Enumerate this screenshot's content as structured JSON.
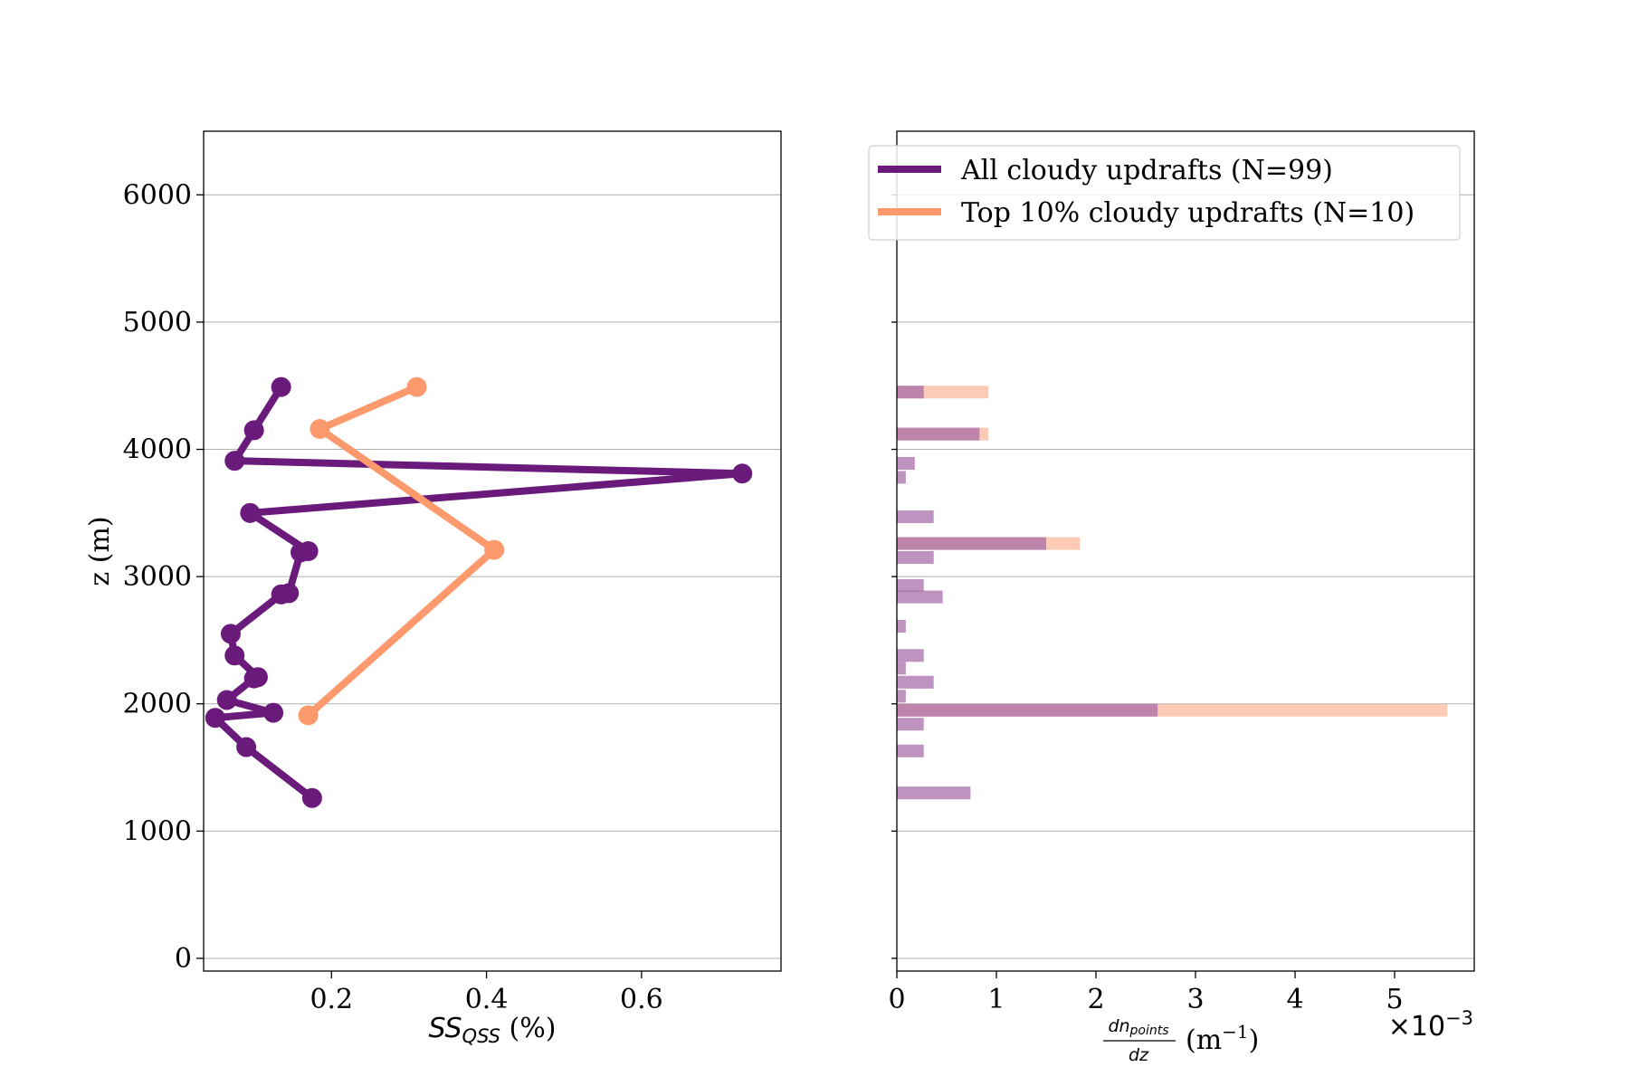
{
  "chart_data": [
    {
      "type": "line",
      "ylabel": "z (m)",
      "xlabel_main": "SS",
      "xlabel_sub": "QSS",
      "xlabel_unit": "(%)",
      "xlim": [
        0.035,
        0.78
      ],
      "ylim": [
        -100,
        6500
      ],
      "xticks": [
        0.2,
        0.4,
        0.6
      ],
      "xtick_labels": [
        "0.2",
        "0.4",
        "0.6"
      ],
      "yticks": [
        0,
        1000,
        2000,
        3000,
        4000,
        5000,
        6000
      ],
      "ytick_labels": [
        "0",
        "1000",
        "2000",
        "3000",
        "4000",
        "5000",
        "6000"
      ],
      "grid": "horizontal",
      "series": [
        {
          "name": "All cloudy updrafts (N=99)",
          "color": "#6a1a7a",
          "points": [
            [
              0.135,
              4490
            ],
            [
              0.1,
              4150
            ],
            [
              0.075,
              3910
            ],
            [
              0.73,
              3810
            ],
            [
              0.095,
              3500
            ],
            [
              0.17,
              3200
            ],
            [
              0.16,
              3190
            ],
            [
              0.145,
              2870
            ],
            [
              0.135,
              2860
            ],
            [
              0.07,
              2550
            ],
            [
              0.075,
              2380
            ],
            [
              0.105,
              2210
            ],
            [
              0.1,
              2200
            ],
            [
              0.065,
              2030
            ],
            [
              0.125,
              1930
            ],
            [
              0.05,
              1890
            ],
            [
              0.09,
              1660
            ],
            [
              0.175,
              1260
            ]
          ]
        },
        {
          "name": "Top 10% cloudy updrafts (N=10)",
          "color": "#fc9a6e",
          "points": [
            [
              0.31,
              4490
            ],
            [
              0.185,
              4160
            ],
            [
              0.41,
              3210
            ],
            [
              0.17,
              1910
            ]
          ]
        }
      ]
    },
    {
      "type": "bar",
      "orientation": "horizontal",
      "xlabel_num": "dn",
      "xlabel_num_sub": "points",
      "xlabel_den": "dz",
      "xlabel_unit_base": "(m",
      "xlabel_unit_exp": "−1",
      "xlabel_unit_close": ")",
      "multiplier_base": "×10",
      "multiplier_exp": "−3",
      "xlim": [
        0,
        5.8
      ],
      "xticks": [
        0,
        1,
        2,
        3,
        4,
        5
      ],
      "xtick_labels": [
        "0",
        "1",
        "2",
        "3",
        "4",
        "5"
      ],
      "yticks": [
        0,
        1000,
        2000,
        3000,
        4000,
        5000,
        6000
      ],
      "grid": "horizontal",
      "bar_height": 100,
      "series": [
        {
          "name": "All cloudy updrafts (N=99)",
          "color": "#a56aa8",
          "bars": [
            {
              "z": 4450,
              "value": 0.27
            },
            {
              "z": 4120,
              "value": 0.83
            },
            {
              "z": 3890,
              "value": 0.18
            },
            {
              "z": 3780,
              "value": 0.09
            },
            {
              "z": 3470,
              "value": 0.37
            },
            {
              "z": 3260,
              "value": 1.5
            },
            {
              "z": 3150,
              "value": 0.37
            },
            {
              "z": 2930,
              "value": 0.27
            },
            {
              "z": 2840,
              "value": 0.46
            },
            {
              "z": 2610,
              "value": 0.09
            },
            {
              "z": 2380,
              "value": 0.27
            },
            {
              "z": 2280,
              "value": 0.09
            },
            {
              "z": 2170,
              "value": 0.37
            },
            {
              "z": 2060,
              "value": 0.09
            },
            {
              "z": 1950,
              "value": 2.62
            },
            {
              "z": 1840,
              "value": 0.27
            },
            {
              "z": 1630,
              "value": 0.27
            },
            {
              "z": 1300,
              "value": 0.74
            }
          ]
        },
        {
          "name": "Top 10% cloudy updrafts (N=10)",
          "color": "#fcae8e",
          "bars": [
            {
              "z": 4450,
              "value": 0.92
            },
            {
              "z": 4120,
              "value": 0.92
            },
            {
              "z": 3260,
              "value": 1.84
            },
            {
              "z": 1950,
              "value": 5.53
            }
          ]
        }
      ]
    }
  ],
  "legend": {
    "placement": "upper-left of right panel",
    "items": [
      {
        "label": "All cloudy updrafts (N=99)",
        "color": "#6a1a7a"
      },
      {
        "label": "Top 10% cloudy updrafts (N=10)",
        "color": "#fc9a6e"
      }
    ]
  }
}
